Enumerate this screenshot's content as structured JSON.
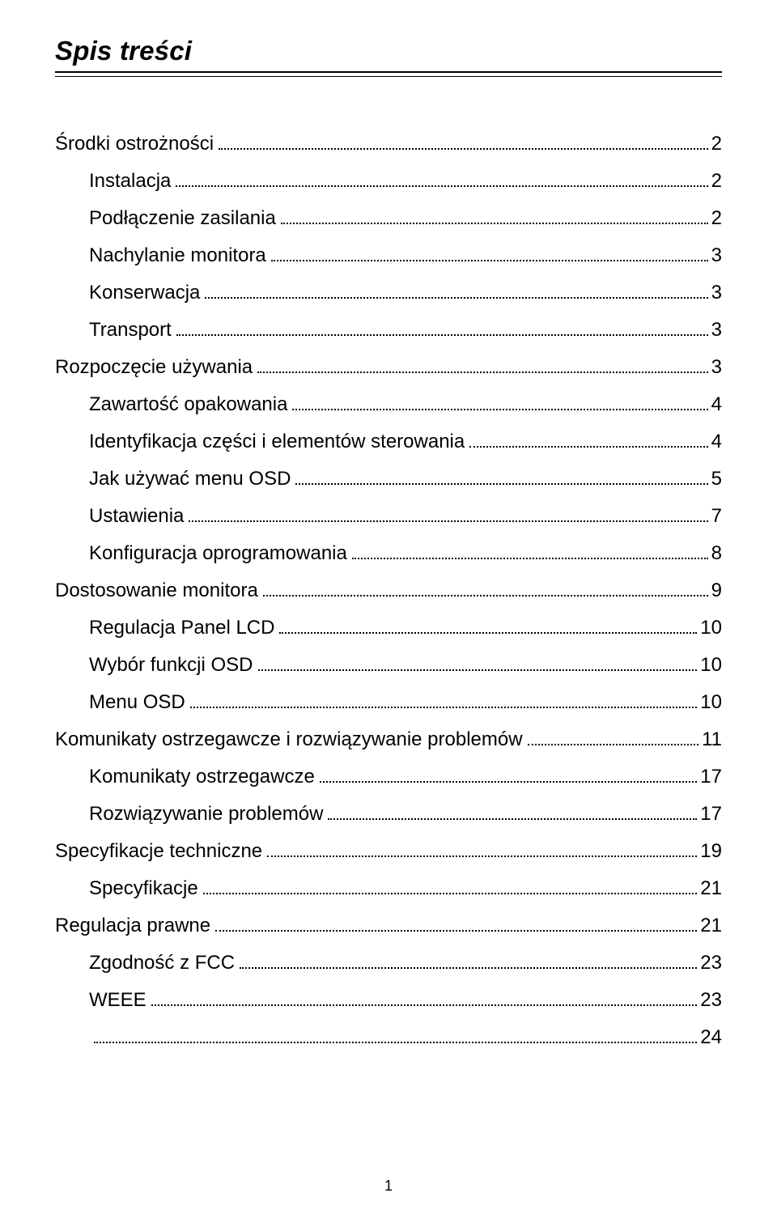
{
  "title": "Spis treści",
  "page_number": "1",
  "toc": [
    {
      "label": "Środki ostrożności",
      "page": "2",
      "level": 0
    },
    {
      "label": "Instalacja",
      "page": "2",
      "level": 1
    },
    {
      "label": "Podłączenie zasilania",
      "page": "2",
      "level": 1
    },
    {
      "label": "Nachylanie monitora",
      "page": "3",
      "level": 1
    },
    {
      "label": "Konserwacja",
      "page": "3",
      "level": 1
    },
    {
      "label": "Transport",
      "page": "3",
      "level": 1
    },
    {
      "label": "Rozpoczęcie używania",
      "page": "3",
      "level": 0
    },
    {
      "label": "Zawartość opakowania",
      "page": "4",
      "level": 1
    },
    {
      "label": "Identyfikacja części i elementów sterowania",
      "page": "4",
      "level": 1
    },
    {
      "label": "Jak używać menu OSD",
      "page": "5",
      "level": 1
    },
    {
      "label": "Ustawienia",
      "page": "7",
      "level": 1
    },
    {
      "label": "Konfiguracja oprogramowania",
      "page": "8",
      "level": 1
    },
    {
      "label": "Dostosowanie monitora",
      "page": "9",
      "level": 0
    },
    {
      "label": "Regulacja Panel LCD",
      "page": "10",
      "level": 1
    },
    {
      "label": "Wybór funkcji OSD",
      "page": "10",
      "level": 1
    },
    {
      "label": "Menu OSD",
      "page": "10",
      "level": 1
    },
    {
      "label": "Komunikaty ostrzegawcze i rozwiązywanie problemów",
      "page": "11",
      "level": 0,
      "no_leader": true
    },
    {
      "label": "Komunikaty ostrzegawcze",
      "page": "17",
      "level": 1
    },
    {
      "label": "Rozwiązywanie problemów",
      "page": "17",
      "level": 1
    },
    {
      "label": "Specyfikacje techniczne",
      "page": "19",
      "level": 0
    },
    {
      "label": "Specyfikacje",
      "page": "21",
      "level": 1
    },
    {
      "label": "Regulacja prawne",
      "page": "21",
      "level": 0
    },
    {
      "label": "Zgodność z FCC",
      "page": "23",
      "level": 1
    },
    {
      "label": "WEEE",
      "page": "23",
      "level": 1
    },
    {
      "label": "",
      "page": "24",
      "level": 1,
      "blank_label": true
    }
  ]
}
